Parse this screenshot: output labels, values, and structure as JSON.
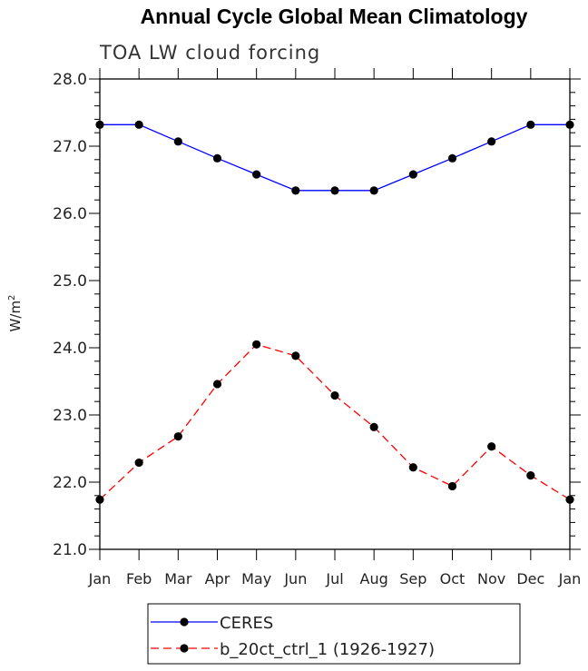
{
  "chart_data": {
    "type": "line",
    "title": "Annual Cycle Global Mean Climatology",
    "subtitle": "TOA LW cloud forcing",
    "xlabel": "",
    "ylabel": "W/m",
    "ylabel_superscript": "2",
    "categories": [
      "Jan",
      "Feb",
      "Mar",
      "Apr",
      "May",
      "Jun",
      "Jul",
      "Aug",
      "Sep",
      "Oct",
      "Nov",
      "Dec",
      "Jan"
    ],
    "ylim": [
      21.0,
      28.0
    ],
    "yticks": [
      "21.0",
      "22.0",
      "23.0",
      "24.0",
      "25.0",
      "26.0",
      "27.0",
      "28.0"
    ],
    "grid": false,
    "legend_position": "bottom",
    "series": [
      {
        "name": "CERES",
        "color": "#0000ff",
        "dash": "solid",
        "marker": "filled-circle",
        "values": [
          27.32,
          27.32,
          27.07,
          26.82,
          26.58,
          26.34,
          26.34,
          26.34,
          26.58,
          26.82,
          27.07,
          27.32,
          27.32
        ]
      },
      {
        "name": "b_20ct_ctrl_1 (1926-1927)",
        "color": "#ff0000",
        "dash": "dashed",
        "marker": "filled-circle",
        "values": [
          21.74,
          22.29,
          22.68,
          23.46,
          24.05,
          23.88,
          23.29,
          22.82,
          22.22,
          21.94,
          22.53,
          22.1,
          21.74
        ]
      }
    ]
  }
}
